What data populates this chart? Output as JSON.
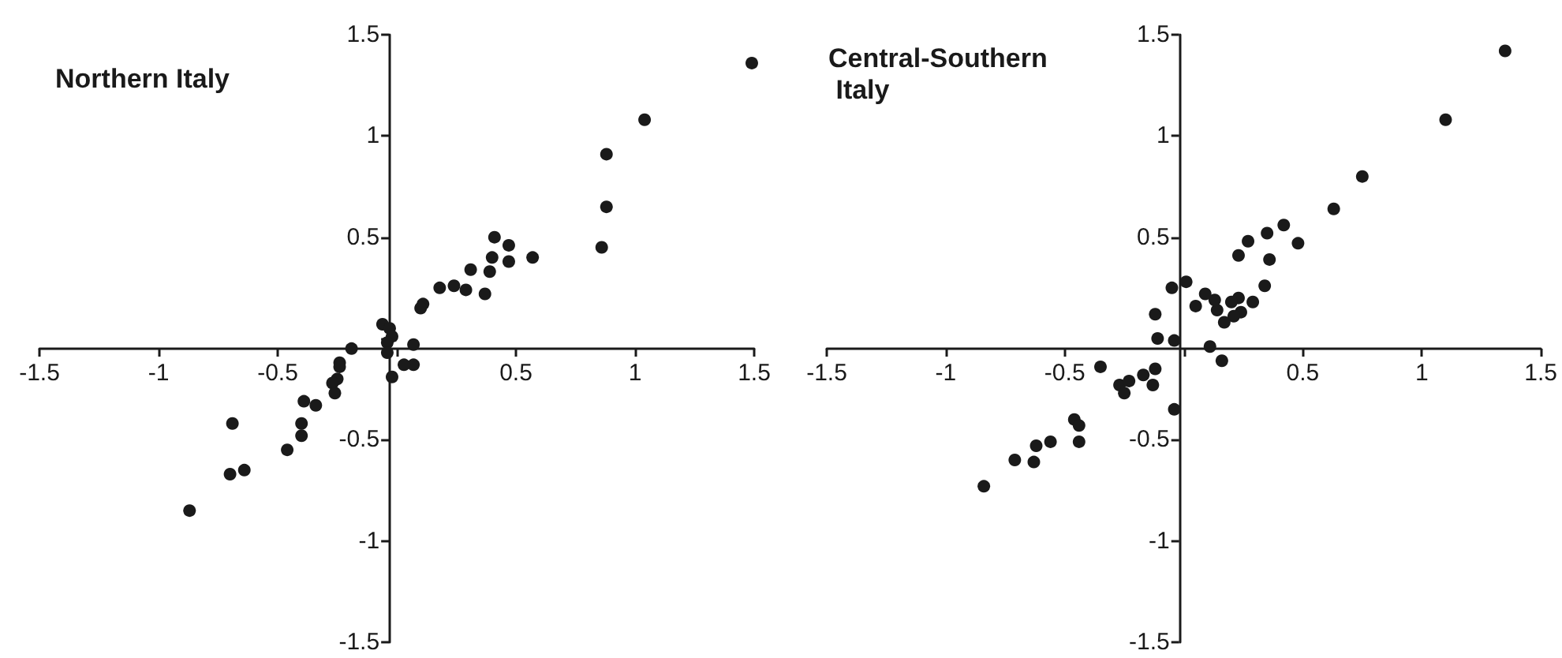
{
  "chart_data": [
    {
      "type": "scatter",
      "title": "Northern Italy",
      "marker": "circle",
      "xlim": [
        -1.5,
        1.5
      ],
      "ylim": [
        -1.5,
        1.5
      ],
      "xticks": [
        -1.5,
        -1,
        -0.5,
        {
          "value": 0,
          "label": null
        },
        0.5,
        1,
        1.5
      ],
      "yticks": [
        -1.5,
        -1,
        -0.5,
        {
          "value": 0,
          "label": null
        },
        0.5,
        1,
        1.5
      ],
      "series": [
        {
          "color": "#1a1a1a",
          "x": [
            1.49,
            1.04,
            0.88,
            0.88,
            0.86,
            0.41,
            0.47,
            0.4,
            0.39,
            0.47,
            0.57,
            0.37,
            0.31,
            0.29,
            0.24,
            0.18,
            0.11,
            0.1,
            -0.06,
            -0.03,
            -0.02,
            -0.04,
            -0.04,
            0.07,
            0.07,
            -0.02,
            0.03,
            -0.19,
            -0.24,
            -0.24,
            -0.25,
            -0.27,
            -0.26,
            -0.39,
            -0.34,
            -0.4,
            -0.4,
            -0.46,
            -0.69,
            -0.7,
            -0.64,
            -0.87
          ],
          "values": [
            1.36,
            1.08,
            0.91,
            0.65,
            0.45,
            0.5,
            0.46,
            0.4,
            0.33,
            0.38,
            0.4,
            0.22,
            0.34,
            0.24,
            0.26,
            0.25,
            0.17,
            0.15,
            0.07,
            0.05,
            0.01,
            -0.02,
            -0.07,
            -0.03,
            -0.13,
            -0.19,
            -0.13,
            -0.05,
            -0.12,
            -0.14,
            -0.2,
            -0.22,
            -0.27,
            -0.31,
            -0.33,
            -0.42,
            -0.48,
            -0.55,
            -0.42,
            -0.67,
            -0.65,
            -0.85
          ]
        }
      ]
    },
    {
      "type": "scatter",
      "title": "Central-Southern Italy",
      "marker": "circle",
      "xlim": [
        -1.5,
        1.5
      ],
      "ylim": [
        -1.5,
        1.5
      ],
      "xticks": [
        -1.5,
        -1,
        -0.5,
        {
          "value": 0,
          "label": null
        },
        0.5,
        1,
        1.5
      ],
      "yticks": [
        -1.5,
        -1,
        -0.5,
        {
          "value": 0,
          "label": null
        },
        0.5,
        1,
        1.5
      ],
      "series": [
        {
          "color": "#1a1a1a",
          "x": [
            1.35,
            1.1,
            0.75,
            0.63,
            0.42,
            0.48,
            0.35,
            0.36,
            0.27,
            0.23,
            0.34,
            0.29,
            0.23,
            0.2,
            0.24,
            0.21,
            0.17,
            0.14,
            0.13,
            0.09,
            0.05,
            0.01,
            -0.05,
            -0.12,
            -0.11,
            -0.04,
            0.11,
            0.16,
            -0.35,
            -0.17,
            -0.12,
            -0.13,
            -0.27,
            -0.23,
            -0.25,
            -0.04,
            -0.46,
            -0.44,
            -0.44,
            -0.56,
            -0.62,
            -0.71,
            -0.63,
            -0.84
          ],
          "values": [
            1.42,
            1.08,
            0.8,
            0.64,
            0.56,
            0.47,
            0.52,
            0.39,
            0.48,
            0.41,
            0.26,
            0.18,
            0.2,
            0.18,
            0.13,
            0.11,
            0.08,
            0.14,
            0.19,
            0.22,
            0.16,
            0.28,
            0.25,
            0.12,
            0,
            -0.01,
            -0.04,
            -0.11,
            -0.14,
            -0.18,
            -0.15,
            -0.23,
            -0.23,
            -0.21,
            -0.27,
            -0.35,
            -0.4,
            -0.43,
            -0.51,
            -0.51,
            -0.53,
            -0.6,
            -0.61,
            -0.73
          ]
        }
      ]
    }
  ]
}
